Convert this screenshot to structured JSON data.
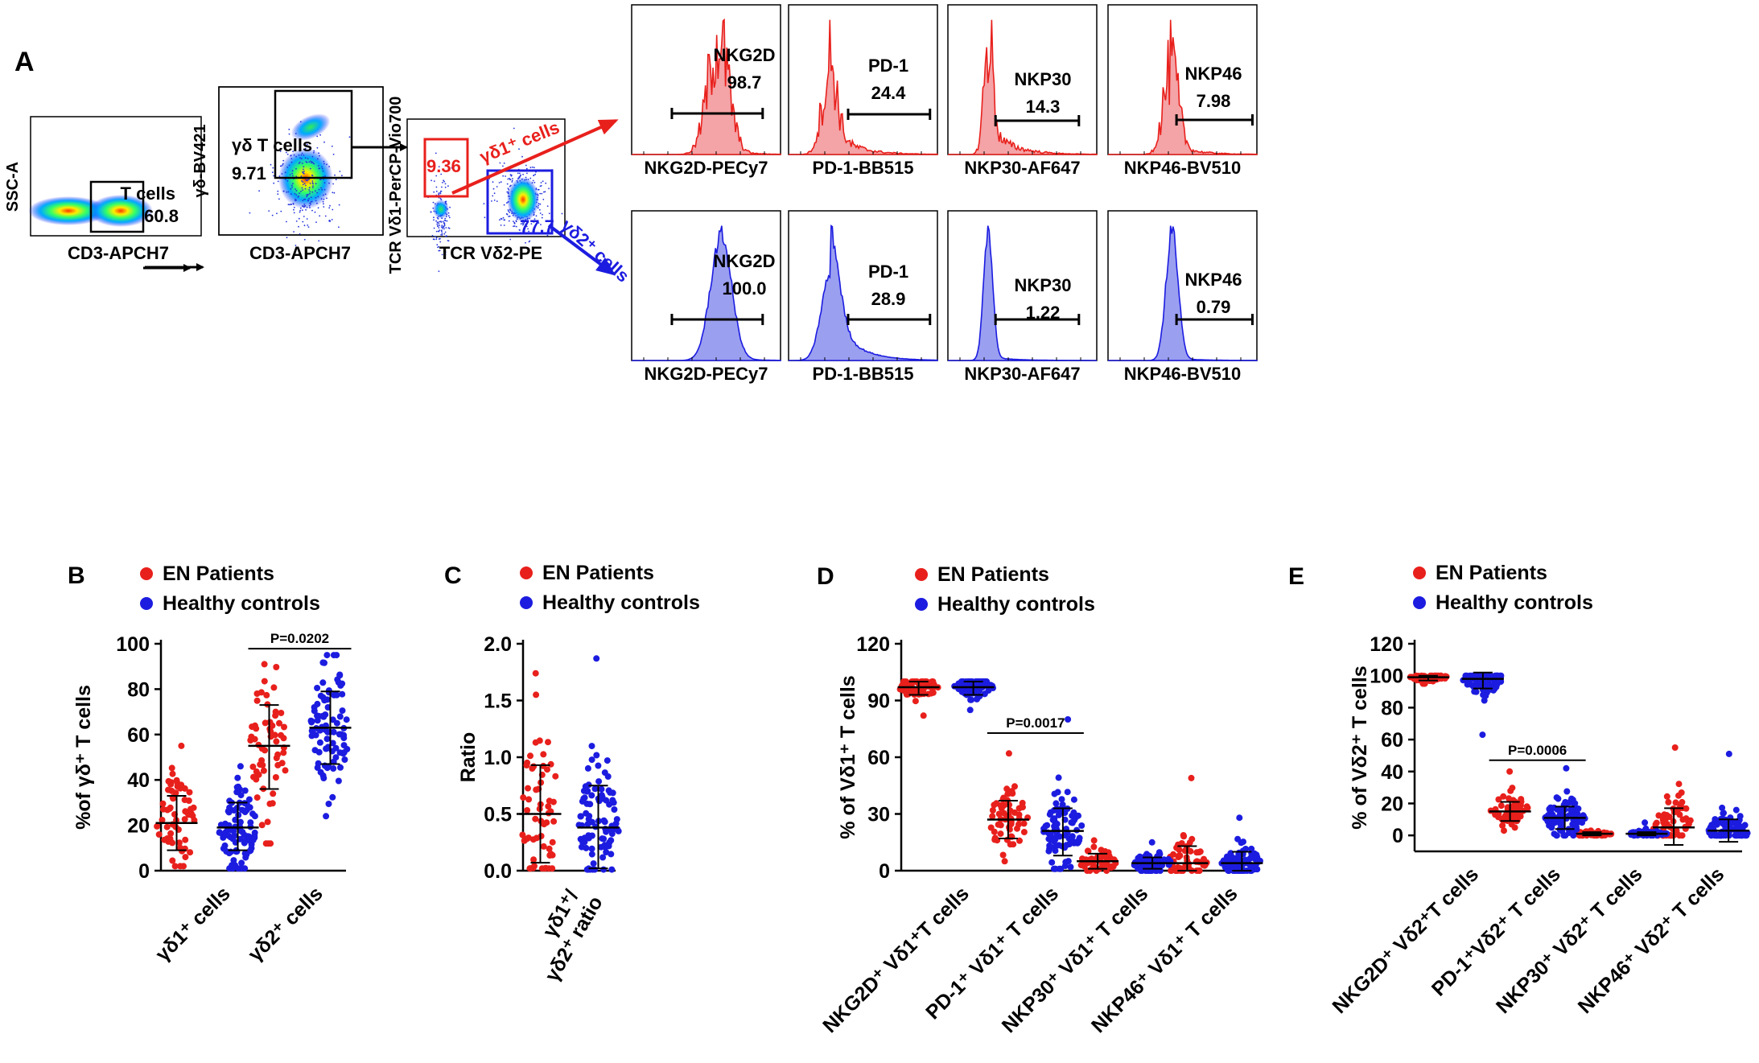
{
  "panel_labels": {
    "a": "A",
    "b": "B",
    "c": "C",
    "d": "D",
    "e": "E"
  },
  "colors": {
    "red": "#e8201c",
    "blue": "#1c1ce0",
    "red_fill": "#f4a3a6",
    "blue_fill": "#9a9ff0"
  },
  "panel_a": {
    "plot1": {
      "ylabel": "SSC-A",
      "xlabel": "CD3-APCH7",
      "gate_name": "T cells",
      "gate_value": "60.8"
    },
    "plot2": {
      "ylabel": "γδ-BV421",
      "xlabel": "CD3-APCH7",
      "gate_name": "γδ T cells",
      "gate_value": "9.71"
    },
    "plot3": {
      "ylabel": "TCR Vδ1-PerCP-Vio700",
      "xlabel": "TCR Vδ2-PE",
      "gate1_value": "9.36",
      "gate2_value": "77.7",
      "arrow1_label": "γδ1⁺ cells",
      "arrow2_label": "γδ2⁺ cells"
    },
    "histograms_top": [
      {
        "marker": "NKG2D",
        "value": "98.7",
        "xlabel": "NKG2D-PECy7"
      },
      {
        "marker": "PD-1",
        "value": "24.4",
        "xlabel": "PD-1-BB515"
      },
      {
        "marker": "NKP30",
        "value": "14.3",
        "xlabel": "NKP30-AF647"
      },
      {
        "marker": "NKP46",
        "value": "7.98",
        "xlabel": "NKP46-BV510"
      }
    ],
    "histograms_bottom": [
      {
        "marker": "NKG2D",
        "value": "100.0",
        "xlabel": "NKG2D-PECy7"
      },
      {
        "marker": "PD-1",
        "value": "28.9",
        "xlabel": "PD-1-BB515"
      },
      {
        "marker": "NKP30",
        "value": "1.22",
        "xlabel": "NKP30-AF647"
      },
      {
        "marker": "NKP46",
        "value": "0.79",
        "xlabel": "NKP46-BV510"
      }
    ]
  },
  "legend": {
    "patients": "EN Patients",
    "controls": "Healthy controls"
  },
  "chart_data": [
    {
      "id": "B",
      "type": "scatter",
      "ylabel": "%of γδ⁺ T cells",
      "ylim": [
        0,
        100
      ],
      "yticks": [
        "0",
        "20",
        "40",
        "60",
        "80",
        "100"
      ],
      "categories": [
        "γδ1⁺ cells",
        "γδ2⁺ cells"
      ],
      "series": [
        {
          "name": "EN Patients",
          "medians": [
            21,
            55
          ],
          "sd_low": [
            9,
            36
          ],
          "sd_high": [
            33,
            73
          ],
          "min": [
            2,
            12
          ],
          "max": [
            55,
            91
          ]
        },
        {
          "name": "Healthy controls",
          "medians": [
            19,
            63
          ],
          "sd_low": [
            9,
            47
          ],
          "sd_high": [
            30,
            79
          ],
          "min": [
            1,
            24
          ],
          "max": [
            46,
            95
          ]
        }
      ],
      "annotation": {
        "text": "P=0.0202",
        "category": 1
      }
    },
    {
      "id": "C",
      "type": "scatter",
      "ylabel": "Ratio",
      "ylim": [
        0,
        2.0
      ],
      "yticks": [
        "0.0",
        "0.5",
        "1.0",
        "1.5",
        "2.0"
      ],
      "categories": [
        "γδ1⁺/ γδ2⁺ ratio"
      ],
      "series": [
        {
          "name": "EN Patients",
          "medians": [
            0.5
          ],
          "sd_low": [
            0.07
          ],
          "sd_high": [
            0.93
          ],
          "min": [
            0.02
          ],
          "max": [
            1.74
          ]
        },
        {
          "name": "Healthy controls",
          "medians": [
            0.38
          ],
          "sd_low": [
            0.02
          ],
          "sd_high": [
            0.75
          ],
          "min": [
            0.01
          ],
          "max": [
            1.87
          ]
        }
      ]
    },
    {
      "id": "D",
      "type": "scatter",
      "ylabel": "% of Vδ1⁺ T cells",
      "ylim": [
        0,
        120
      ],
      "yticks": [
        "0",
        "30",
        "60",
        "90",
        "120"
      ],
      "categories": [
        "NKG2D⁺ Vδ1⁺T  cells",
        "PD-1⁺ Vδ1⁺ T cells",
        "NKP30⁺ Vδ1⁺ T cells",
        "NKP46⁺ Vδ1⁺ T cells"
      ],
      "series": [
        {
          "name": "EN Patients",
          "medians": [
            97,
            27,
            5,
            4
          ],
          "sd_low": [
            93,
            17,
            1,
            0
          ],
          "sd_high": [
            100,
            37,
            9,
            13
          ],
          "min": [
            82,
            5,
            0,
            0
          ],
          "max": [
            100,
            62,
            16,
            49
          ]
        },
        {
          "name": "Healthy controls",
          "medians": [
            97,
            21,
            4,
            4
          ],
          "sd_low": [
            93,
            8,
            1,
            0
          ],
          "sd_high": [
            100,
            33,
            7,
            10
          ],
          "min": [
            85,
            1,
            0,
            0
          ],
          "max": [
            100,
            80,
            15,
            28
          ]
        }
      ],
      "annotation": {
        "text": "P=0.0017",
        "category": 1
      }
    },
    {
      "id": "E",
      "type": "scatter",
      "ylabel": "% of Vδ2⁺ T cells",
      "ylim": [
        -10,
        120
      ],
      "yticks": [
        "0",
        "20",
        "40",
        "60",
        "80",
        "100",
        "120"
      ],
      "categories": [
        "NKG2D⁺ Vδ2⁺T cells",
        "PD-1⁺Vδ2⁺ T cells",
        "NKP30⁺ Vδ2⁺ T cells",
        "NKP46⁺ Vδ2⁺ T cells"
      ],
      "series": [
        {
          "name": "EN Patients",
          "medians": [
            99,
            15,
            1,
            5
          ],
          "sd_low": [
            97,
            9,
            0,
            -6
          ],
          "sd_high": [
            100,
            21,
            2,
            17
          ],
          "min": [
            95,
            3,
            0,
            0
          ],
          "max": [
            100,
            40,
            3,
            55
          ]
        },
        {
          "name": "Healthy controls",
          "medians": [
            98,
            11,
            1,
            3
          ],
          "sd_low": [
            92,
            4,
            0,
            -4
          ],
          "sd_high": [
            102,
            18,
            2,
            10
          ],
          "min": [
            63,
            0,
            0,
            0
          ],
          "max": [
            100,
            42,
            8,
            51
          ]
        }
      ],
      "annotation": {
        "text": "P=0.0006",
        "category": 1
      }
    }
  ]
}
